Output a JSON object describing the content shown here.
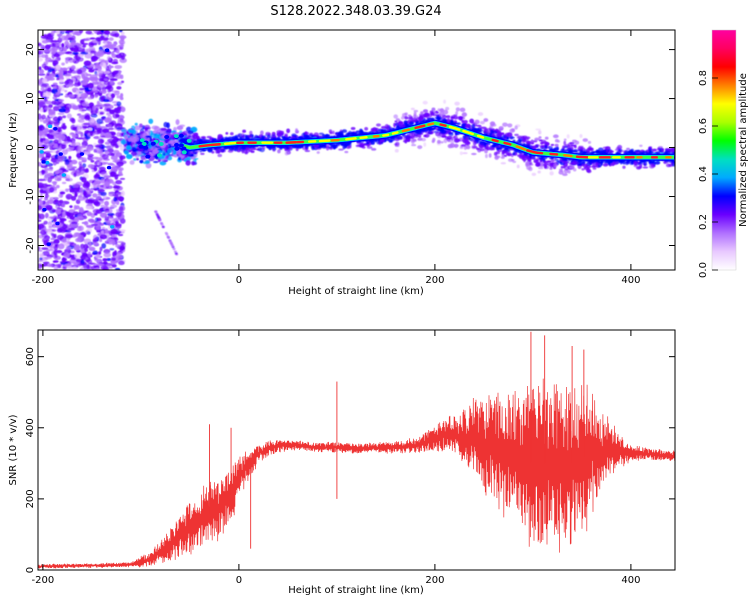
{
  "title": "S128.2022.348.03.39.G24",
  "chart_data": [
    {
      "type": "heatmap",
      "xlabel": "Height of straight line (km)",
      "ylabel": "Frequency (Hz)",
      "xlim": [
        -205,
        445
      ],
      "ylim": [
        -25,
        24
      ],
      "xticks": [
        -200,
        0,
        200,
        400
      ],
      "yticks": [
        -20,
        -10,
        0,
        10,
        20
      ],
      "colorbar": {
        "label": "Normalized spectral amplitude",
        "range": [
          0,
          1
        ],
        "ticks": [
          0.0,
          0.2,
          0.4,
          0.6,
          0.8
        ],
        "colormap": [
          "#ffffff",
          "#e8c8ff",
          "#b070ff",
          "#6a00ff",
          "#0000ff",
          "#00aaff",
          "#00e0c0",
          "#00ff00",
          "#aaff00",
          "#ffff00",
          "#ff8000",
          "#ff0000",
          "#ff0060",
          "#ff00a0"
        ]
      },
      "ridge": {
        "x": [
          -75,
          -60,
          -50,
          -30,
          0,
          50,
          100,
          150,
          180,
          200,
          220,
          250,
          280,
          300,
          330,
          350,
          400,
          445
        ],
        "y": [
          1,
          0.5,
          0,
          0.5,
          1,
          1,
          1.5,
          2.5,
          4,
          5,
          4,
          2,
          0.5,
          -1,
          -1.5,
          -2,
          -2,
          -2
        ]
      }
    },
    {
      "type": "line",
      "xlabel": "Height of straight line (km)",
      "ylabel": "SNR (10 * v/v)",
      "xlim": [
        -205,
        445
      ],
      "ylim": [
        0,
        675
      ],
      "xticks": [
        -200,
        0,
        200,
        400
      ],
      "yticks": [
        0,
        200,
        400,
        600
      ],
      "color": "#ee3333",
      "envelope": {
        "x": [
          -205,
          -110,
          -90,
          -70,
          -50,
          -30,
          -10,
          0,
          20,
          40,
          60,
          80,
          100,
          120,
          140,
          160,
          180,
          200,
          220,
          240,
          260,
          280,
          300,
          320,
          340,
          360,
          380,
          400,
          420,
          445
        ],
        "mean": [
          10,
          15,
          30,
          70,
          120,
          160,
          200,
          260,
          330,
          350,
          350,
          345,
          345,
          340,
          345,
          345,
          350,
          370,
          380,
          370,
          340,
          320,
          300,
          300,
          300,
          330,
          340,
          330,
          325,
          320
        ],
        "spread": [
          5,
          6,
          20,
          40,
          60,
          80,
          70,
          50,
          25,
          15,
          12,
          12,
          12,
          12,
          12,
          15,
          18,
          30,
          50,
          90,
          130,
          160,
          190,
          200,
          200,
          150,
          60,
          20,
          15,
          15
        ]
      },
      "spikes": [
        {
          "x": 100,
          "y": 530
        },
        {
          "x": 100,
          "y": 200
        },
        {
          "x": 298,
          "y": 670
        },
        {
          "x": 312,
          "y": 660
        },
        {
          "x": 340,
          "y": 630
        },
        {
          "x": 352,
          "y": 620
        },
        {
          "x": -30,
          "y": 410
        },
        {
          "x": -8,
          "y": 400
        },
        {
          "x": 12,
          "y": 60
        }
      ]
    }
  ]
}
